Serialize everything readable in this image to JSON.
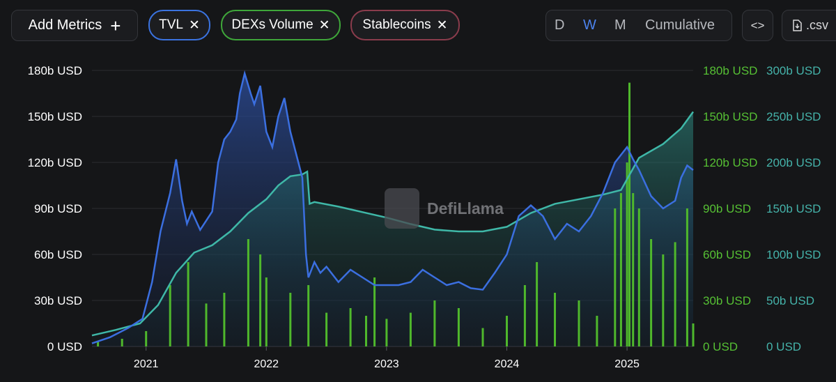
{
  "toolbar": {
    "add_metrics_label": "Add Metrics",
    "add_icon": "+",
    "close_icon": "✕",
    "pills": [
      {
        "label": "TVL",
        "color": "#3b73e0"
      },
      {
        "label": "DEXs Volume",
        "color": "#3fa73a"
      },
      {
        "label": "Stablecoins",
        "color": "#8a3c4c"
      }
    ],
    "intervals": [
      "D",
      "W",
      "M",
      "Cumulative"
    ],
    "active_interval": "W",
    "embed_label": "<>",
    "csv_label": ".csv"
  },
  "watermark": "DefiLlama",
  "colors": {
    "tvl": "#3b6fe0",
    "dex": "#4fb82c",
    "stable": "#3fb8a8",
    "background": "#151618"
  },
  "chart_data": {
    "type": "line",
    "title": "",
    "x_axis": {
      "ticks": [
        "2021",
        "2022",
        "2023",
        "2024",
        "2025"
      ],
      "range": [
        2020.55,
        2025.55
      ]
    },
    "y_axes": {
      "left": {
        "ticks": [
          "0 USD",
          "30b USD",
          "60b USD",
          "90b USD",
          "120b USD",
          "150b USD",
          "180b USD"
        ],
        "range": [
          0,
          180
        ],
        "unit": "b USD",
        "series": "TVL"
      },
      "green": {
        "ticks": [
          "0 USD",
          "30b USD",
          "60b USD",
          "90b USD",
          "120b USD",
          "150b USD",
          "180b USD"
        ],
        "range": [
          0,
          180
        ],
        "unit": "b USD",
        "series": "DEXs Volume"
      },
      "teal": {
        "ticks": [
          "0 USD",
          "50b USD",
          "100b USD",
          "150b USD",
          "200b USD",
          "250b USD",
          "300b USD"
        ],
        "range": [
          0,
          300
        ],
        "unit": "b USD",
        "series": "Stablecoins"
      }
    },
    "series": [
      {
        "name": "TVL",
        "axis": "left",
        "unit": "b USD",
        "x": [
          2020.55,
          2020.7,
          2020.85,
          2020.97,
          2021.05,
          2021.12,
          2021.2,
          2021.25,
          2021.3,
          2021.34,
          2021.38,
          2021.45,
          2021.5,
          2021.55,
          2021.6,
          2021.65,
          2021.7,
          2021.75,
          2021.78,
          2021.82,
          2021.87,
          2021.9,
          2021.95,
          2022.0,
          2022.05,
          2022.1,
          2022.15,
          2022.2,
          2022.25,
          2022.3,
          2022.33,
          2022.35,
          2022.4,
          2022.45,
          2022.5,
          2022.6,
          2022.7,
          2022.8,
          2022.9,
          2023.0,
          2023.1,
          2023.2,
          2023.3,
          2023.4,
          2023.5,
          2023.6,
          2023.7,
          2023.8,
          2023.9,
          2024.0,
          2024.1,
          2024.2,
          2024.3,
          2024.4,
          2024.5,
          2024.6,
          2024.7,
          2024.8,
          2024.9,
          2025.0,
          2025.05,
          2025.1,
          2025.2,
          2025.3,
          2025.4,
          2025.45,
          2025.5,
          2025.55
        ],
        "values": [
          2,
          6,
          12,
          18,
          42,
          75,
          100,
          122,
          95,
          80,
          88,
          76,
          82,
          88,
          120,
          135,
          140,
          148,
          165,
          178,
          165,
          158,
          170,
          140,
          130,
          150,
          162,
          140,
          125,
          110,
          60,
          45,
          55,
          48,
          52,
          42,
          50,
          45,
          40,
          40,
          40,
          42,
          50,
          45,
          40,
          42,
          38,
          37,
          48,
          60,
          85,
          92,
          85,
          70,
          80,
          75,
          85,
          100,
          120,
          130,
          122,
          115,
          98,
          90,
          95,
          110,
          118,
          115
        ]
      },
      {
        "name": "Stablecoins",
        "axis": "teal",
        "unit": "b USD",
        "x": [
          2020.55,
          2020.75,
          2020.95,
          2021.1,
          2021.25,
          2021.4,
          2021.55,
          2021.7,
          2021.85,
          2022.0,
          2022.1,
          2022.2,
          2022.3,
          2022.34,
          2022.36,
          2022.4,
          2022.6,
          2022.8,
          2023.0,
          2023.2,
          2023.4,
          2023.6,
          2023.8,
          2024.0,
          2024.2,
          2024.4,
          2024.6,
          2024.8,
          2024.95,
          2025.1,
          2025.3,
          2025.45,
          2025.55
        ],
        "values": [
          12,
          18,
          25,
          45,
          80,
          102,
          110,
          125,
          145,
          160,
          175,
          185,
          187,
          190,
          155,
          157,
          152,
          146,
          140,
          133,
          127,
          125,
          125,
          130,
          145,
          155,
          160,
          165,
          170,
          205,
          220,
          237,
          255
        ]
      },
      {
        "name": "DEXs Volume",
        "axis": "green",
        "unit": "b USD",
        "type": "bar",
        "x": [
          2020.6,
          2020.8,
          2021.0,
          2021.2,
          2021.35,
          2021.5,
          2021.65,
          2021.85,
          2021.95,
          2022.0,
          2022.2,
          2022.35,
          2022.5,
          2022.7,
          2022.83,
          2022.9,
          2023.0,
          2023.2,
          2023.4,
          2023.6,
          2023.8,
          2024.0,
          2024.15,
          2024.25,
          2024.4,
          2024.6,
          2024.75,
          2024.9,
          2024.95,
          2025.0,
          2025.02,
          2025.05,
          2025.1,
          2025.2,
          2025.3,
          2025.4,
          2025.5,
          2025.55
        ],
        "values": [
          3,
          5,
          10,
          40,
          55,
          28,
          35,
          70,
          60,
          45,
          35,
          40,
          22,
          25,
          20,
          45,
          18,
          22,
          30,
          25,
          12,
          20,
          40,
          55,
          35,
          30,
          20,
          90,
          100,
          120,
          172,
          100,
          90,
          70,
          60,
          68,
          90,
          15
        ]
      }
    ]
  }
}
